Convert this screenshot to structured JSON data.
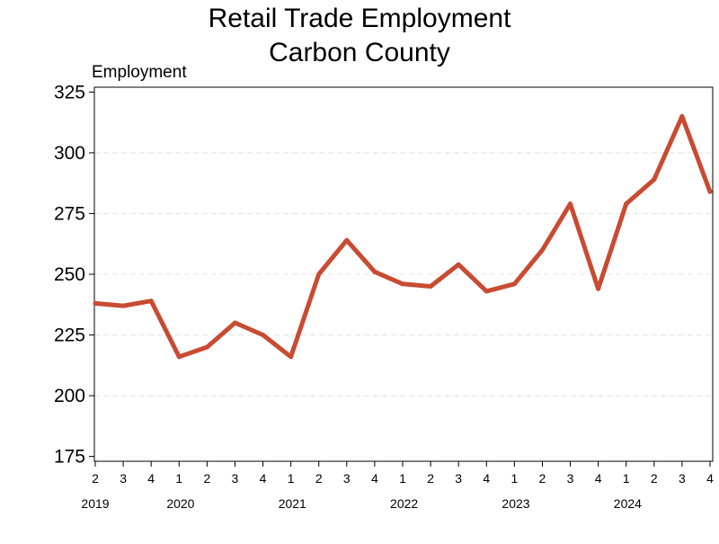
{
  "chart_data": {
    "type": "line",
    "title": [
      "Retail Trade Employment",
      "Carbon County"
    ],
    "ylabel": "Employment",
    "xlabel": "",
    "ylim": [
      173,
      327
    ],
    "yticks": [
      175,
      200,
      225,
      250,
      275,
      300,
      325
    ],
    "grid": "horizontal-dashed",
    "legend": "none",
    "series_color": "#c84b32",
    "quarters": [
      "2",
      "3",
      "4",
      "1",
      "2",
      "3",
      "4",
      "1",
      "2",
      "3",
      "4",
      "1",
      "2",
      "3",
      "4",
      "1",
      "2",
      "3",
      "4",
      "1",
      "2",
      "3",
      "4"
    ],
    "years": [
      {
        "label": "2019",
        "start_index": 0,
        "end_index": 2
      },
      {
        "label": "2020",
        "start_index": 3,
        "end_index": 6
      },
      {
        "label": "2021",
        "start_index": 7,
        "end_index": 10
      },
      {
        "label": "2022",
        "start_index": 11,
        "end_index": 14
      },
      {
        "label": "2023",
        "start_index": 15,
        "end_index": 18
      },
      {
        "label": "2024",
        "start_index": 19,
        "end_index": 22
      }
    ],
    "series": [
      {
        "values": [
          238,
          237,
          239,
          216,
          220,
          230,
          225,
          216,
          250,
          264,
          251,
          246,
          245,
          254,
          243,
          246,
          260,
          279,
          244,
          279,
          289,
          315,
          284
        ]
      }
    ]
  }
}
